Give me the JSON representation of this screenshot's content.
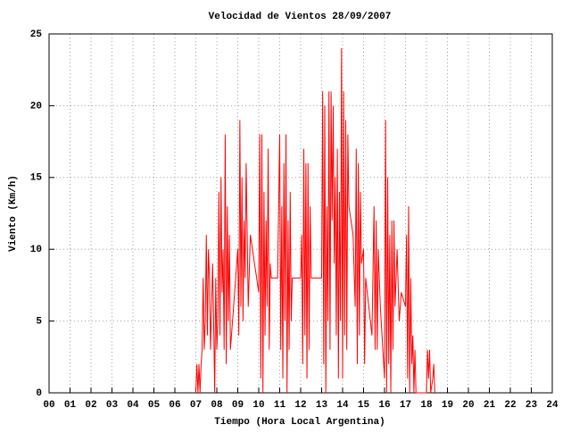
{
  "chart_data": {
    "type": "line",
    "title": "Velocidad de Vientos 28/09/2007",
    "x_label": "Tiempo (Hora Local Argentina)",
    "y_label": "Viento (Km/h)",
    "grid": true,
    "xlim": [
      0,
      24
    ],
    "ylim": [
      0,
      25
    ],
    "xticks": [
      {
        "value": 0,
        "label": "00"
      },
      {
        "value": 1,
        "label": "01"
      },
      {
        "value": 2,
        "label": "02"
      },
      {
        "value": 3,
        "label": "03"
      },
      {
        "value": 4,
        "label": "04"
      },
      {
        "value": 5,
        "label": "05"
      },
      {
        "value": 6,
        "label": "06"
      },
      {
        "value": 7,
        "label": "07"
      },
      {
        "value": 8,
        "label": "08"
      },
      {
        "value": 9,
        "label": "09"
      },
      10,
      11,
      12,
      13,
      14,
      15,
      16,
      17,
      18,
      19,
      20,
      21,
      22,
      23,
      24
    ],
    "yticks": [
      0,
      5,
      10,
      15,
      20,
      25
    ],
    "x": [
      7.0,
      7.05,
      7.1,
      7.15,
      7.2,
      7.25,
      7.3,
      7.35,
      7.4,
      7.45,
      7.5,
      7.55,
      7.6,
      7.65,
      7.7,
      7.75,
      7.8,
      7.85,
      7.9,
      7.95,
      8.0,
      8.05,
      8.1,
      8.15,
      8.2,
      8.25,
      8.3,
      8.35,
      8.4,
      8.45,
      8.5,
      8.55,
      8.6,
      8.65,
      8.8,
      8.9,
      9.0,
      9.05,
      9.1,
      9.15,
      9.2,
      9.25,
      9.3,
      9.35,
      9.4,
      9.5,
      9.6,
      9.8,
      10.0,
      10.05,
      10.1,
      10.15,
      10.2,
      10.25,
      10.3,
      10.35,
      10.4,
      10.45,
      10.5,
      10.55,
      10.6,
      10.9,
      11.0,
      11.05,
      11.1,
      11.15,
      11.2,
      11.25,
      11.3,
      11.35,
      11.4,
      11.45,
      11.5,
      11.55,
      11.6,
      12.0,
      12.05,
      12.1,
      12.15,
      12.2,
      12.25,
      12.3,
      12.35,
      12.4,
      12.45,
      12.5,
      13.0,
      13.05,
      13.1,
      13.15,
      13.2,
      13.25,
      13.3,
      13.35,
      13.4,
      13.45,
      13.5,
      13.55,
      13.6,
      13.65,
      13.7,
      13.75,
      13.8,
      13.85,
      13.9,
      13.95,
      14.0,
      14.05,
      14.1,
      14.15,
      14.2,
      14.25,
      14.3,
      14.4,
      14.5,
      14.6,
      14.65,
      14.7,
      14.75,
      14.8,
      14.85,
      14.9,
      15.0,
      15.05,
      15.1,
      15.4,
      15.5,
      15.55,
      15.6,
      15.65,
      15.7,
      15.8,
      16.0,
      16.05,
      16.1,
      16.15,
      16.2,
      16.25,
      16.3,
      16.35,
      16.4,
      16.45,
      16.5,
      16.6,
      16.7,
      16.8,
      17.0,
      17.05,
      17.1,
      17.15,
      17.2,
      17.25,
      17.3,
      17.35,
      17.4,
      17.45,
      17.5,
      18.0,
      18.05,
      18.1,
      18.15,
      18.2,
      18.3,
      18.35,
      18.4
    ],
    "series": [
      {
        "color": "#ff0000",
        "values": [
          0,
          2,
          0,
          2,
          0,
          2,
          3,
          8,
          3,
          5,
          11,
          4,
          10,
          8,
          3,
          6,
          9,
          5,
          0,
          8,
          3,
          5,
          14,
          4,
          15,
          7,
          10,
          3,
          18,
          2,
          13,
          5,
          11,
          3,
          6,
          8,
          10,
          4,
          19,
          6,
          15,
          5,
          12,
          8,
          16,
          6,
          11,
          9,
          7,
          18,
          1,
          18,
          0,
          14,
          4,
          12,
          6,
          17,
          3,
          9,
          8,
          8,
          18,
          3,
          13,
          1,
          16,
          5,
          18,
          0,
          12,
          3,
          14,
          5,
          8,
          8,
          11,
          2,
          17,
          4,
          16,
          1,
          16,
          3,
          13,
          8,
          8,
          21,
          2,
          20,
          0,
          13,
          5,
          21,
          3,
          21,
          12,
          20,
          9,
          15,
          4,
          17,
          1,
          14,
          5,
          24,
          1,
          21,
          4,
          19,
          3,
          18,
          13,
          12,
          11,
          6,
          17,
          2,
          16,
          4,
          14,
          9,
          10,
          2,
          8,
          4,
          13,
          3,
          12,
          3,
          10,
          6,
          1,
          19,
          0,
          15,
          2,
          11,
          0,
          12,
          3,
          12,
          6,
          10,
          5,
          7,
          6,
          11,
          1,
          13,
          0,
          8,
          2,
          4,
          0,
          3,
          0,
          0,
          3,
          1,
          3,
          0,
          1,
          2,
          0
        ]
      }
    ]
  }
}
